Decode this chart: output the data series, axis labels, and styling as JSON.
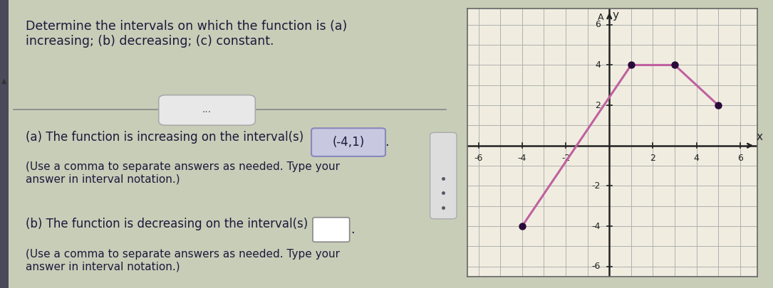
{
  "graph_points": [
    [
      -4,
      -4
    ],
    [
      1,
      4
    ],
    [
      3,
      4
    ],
    [
      5,
      2
    ]
  ],
  "dot_points": [
    [
      -4,
      -4
    ],
    [
      1,
      4
    ],
    [
      3,
      4
    ],
    [
      5,
      2
    ]
  ],
  "line_color": "#c060a0",
  "dot_color": "#2a0a3a",
  "xlim": [
    -6.5,
    6.8
  ],
  "ylim": [
    -6.5,
    6.8
  ],
  "xtick_vals": [
    -6,
    -4,
    -2,
    2,
    4,
    6
  ],
  "ytick_vals": [
    -6,
    -4,
    -2,
    2,
    4,
    6
  ],
  "grid_color": "#b0b0b0",
  "graph_bg": "#f0ede0",
  "graph_border": "#888888",
  "left_bg": "#c8cdb8",
  "text_color": "#1a1a3a",
  "title_text": "Determine the intervals on which the function is (a)\nincreasing; (b) decreasing; (c) constant.",
  "text_a": "(a) The function is increasing on the interval(s)",
  "text_a_answer": "(-4,1)",
  "text_a_note": "(Use a comma to separate answers as needed. Type your\nanswer in interval notation.)",
  "text_b": "(b) The function is decreasing on the interval(s)",
  "text_b_note": "(Use a comma to separate answers as needed. Type your\nanswer in interval notation.)",
  "fig_width": 10.85,
  "fig_height": 4.05,
  "dpi": 100
}
